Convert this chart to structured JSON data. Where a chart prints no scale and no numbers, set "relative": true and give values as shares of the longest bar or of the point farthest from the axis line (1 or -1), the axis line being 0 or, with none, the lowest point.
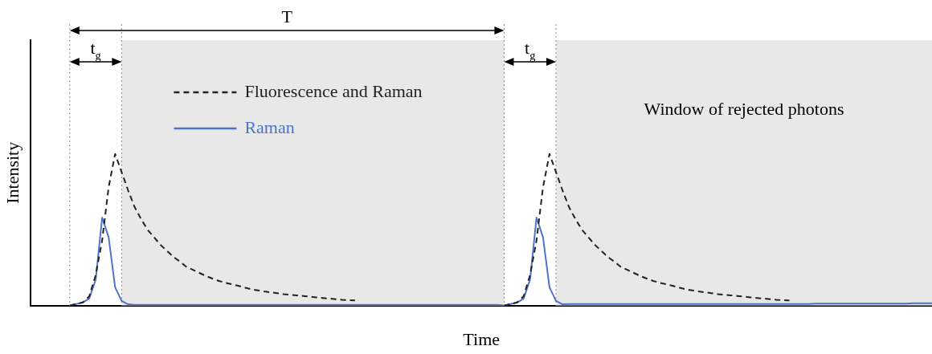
{
  "chart_data": {
    "type": "line",
    "relative": true,
    "xlabel": "Time",
    "ylabel": "Intensity",
    "tick_labels": false,
    "grid": false,
    "legend": "top left",
    "marker": "none",
    "categories": [
      null,
      null,
      null,
      null,
      null,
      null,
      null,
      null,
      null,
      null,
      null,
      null,
      null,
      null,
      null,
      null,
      null,
      null,
      null,
      null,
      null,
      null,
      null,
      null,
      null,
      null,
      null,
      null,
      null,
      null,
      null,
      null,
      null,
      null,
      null,
      null,
      null,
      null,
      null,
      null,
      null,
      null,
      null,
      null,
      null,
      null,
      null,
      null,
      null,
      null,
      null,
      null,
      null,
      null,
      null,
      null,
      null,
      null,
      null,
      null,
      null,
      null,
      null,
      null,
      null,
      null,
      null,
      null,
      null,
      null,
      null,
      null,
      null,
      null,
      null,
      null,
      null,
      null,
      null,
      null,
      null,
      null,
      null,
      null,
      null,
      null,
      null,
      null,
      null,
      null,
      null,
      null,
      null,
      null,
      null,
      null,
      null,
      null,
      null,
      null,
      null,
      null,
      null,
      null,
      null,
      null,
      null,
      null,
      null,
      null,
      null,
      null,
      null,
      null,
      null,
      null,
      null,
      null,
      null,
      null,
      null,
      null,
      null,
      null,
      null,
      null,
      null,
      null,
      null,
      null,
      null,
      null,
      null,
      null,
      null,
      null,
      null,
      null,
      null,
      null
    ],
    "series": [
      {
        "name": "Fluorescence and Raman",
        "color": "#222222",
        "line_style": "dashed",
        "values": [
          null,
          null,
          null,
          null,
          null,
          null,
          0,
          0.01,
          0.02,
          0.06,
          0.2,
          0.43,
          0.78,
          1,
          0.88,
          0.76,
          0.65,
          0.57,
          0.5,
          0.45,
          0.4,
          0.36,
          0.32,
          0.29,
          0.255,
          0.235,
          0.215,
          0.195,
          0.178,
          0.162,
          0.15,
          0.14,
          0.13,
          0.118,
          0.107,
          0.1,
          0.093,
          0.087,
          0.081,
          0.075,
          0.071,
          0.067,
          0.063,
          0.058,
          0.054,
          0.05,
          0.046,
          0.042,
          0.038,
          0.035,
          0.033,
          null,
          null,
          null,
          null,
          null,
          null,
          null,
          null,
          null,
          null,
          null,
          null,
          null,
          null,
          null,
          null,
          null,
          null,
          null,
          null,
          null,
          null,
          0,
          0.01,
          0.02,
          0.06,
          0.2,
          0.43,
          0.78,
          1,
          0.88,
          0.76,
          0.65,
          0.57,
          0.5,
          0.45,
          0.4,
          0.36,
          0.32,
          0.29,
          0.255,
          0.235,
          0.215,
          0.195,
          0.178,
          0.162,
          0.15,
          0.14,
          0.13,
          0.118,
          0.107,
          0.1,
          0.093,
          0.087,
          0.081,
          0.075,
          0.071,
          0.067,
          0.063,
          0.058,
          0.054,
          0.05,
          0.046,
          0.042,
          0.038,
          0.035,
          0.033,
          null,
          null,
          null,
          null,
          null,
          null,
          null,
          null,
          null,
          null,
          null,
          null,
          null,
          null,
          null,
          null,
          null,
          null,
          null,
          null,
          null,
          null
        ]
      },
      {
        "name": "Raman",
        "color": "#4f73c9",
        "line_style": "solid",
        "values": [
          null,
          null,
          null,
          null,
          null,
          null,
          0,
          0.01,
          0.02,
          0.045,
          0.17,
          0.58,
          0.45,
          0.12,
          0.03,
          0.008,
          0.005,
          0.005,
          0.005,
          0.005,
          0.005,
          0.005,
          0.005,
          0.005,
          0.005,
          0.005,
          0.005,
          0.005,
          0.005,
          0.005,
          0.005,
          0.005,
          0.005,
          0.005,
          0.005,
          0.005,
          0.005,
          0.005,
          0.005,
          0.005,
          0.005,
          0.005,
          0.005,
          0.005,
          0.005,
          0.005,
          0.005,
          0.005,
          0.005,
          0.005,
          0.005,
          0.005,
          0.005,
          0.005,
          0.005,
          0.005,
          0.005,
          0.005,
          0.005,
          0.005,
          0.005,
          0.005,
          0.005,
          0.005,
          0.005,
          0.005,
          0.005,
          0.005,
          0.005,
          0.005,
          0.005,
          0.005,
          0.005,
          0,
          0.01,
          0.02,
          0.045,
          0.17,
          0.58,
          0.45,
          0.12,
          0.03,
          0.008,
          0.01,
          0.01,
          0.01,
          0.01,
          0.01,
          0.01,
          0.01,
          0.01,
          0.01,
          0.01,
          0.01,
          0.01,
          0.01,
          0.01,
          0.01,
          0.01,
          0.01,
          0.01,
          0.01,
          0.01,
          0.01,
          0.01,
          0.01,
          0.01,
          0.01,
          0.01,
          0.01,
          0.01,
          0.01,
          0.01,
          0.01,
          0.01,
          0.01,
          0.01,
          0.01,
          0.01,
          0.01,
          0.01,
          0.012,
          0.012,
          0.012,
          0.012,
          0.012,
          0.012,
          0.012,
          0.012,
          0.012,
          0.012,
          0.012,
          0.012,
          0.012,
          0.012,
          0.012,
          0.015,
          0.015,
          0.015,
          0.015
        ]
      }
    ],
    "annotations": [
      "T",
      "t$_{g}$",
      "t$_{g}$",
      "Window of rejected photons"
    ]
  }
}
